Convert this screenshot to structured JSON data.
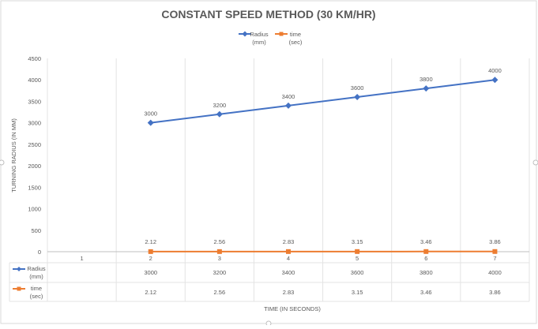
{
  "chart_data": {
    "type": "line",
    "title": "CONSTANT SPEED METHOD (30 KM/HR)",
    "xlabel": "TIME (IN SECONDS)",
    "ylabel": "TURNING RADIUS (IN MM)",
    "categories": [
      "1",
      "2",
      "3",
      "4",
      "5",
      "6",
      "7"
    ],
    "ylim": [
      0,
      4500
    ],
    "yticks": [
      "0",
      "500",
      "1000",
      "1500",
      "2000",
      "2500",
      "3000",
      "3500",
      "4000",
      "4500"
    ],
    "grid": "vertical",
    "legend_position": "top",
    "series": [
      {
        "name_line1": "Radius",
        "name_line2": "(mm)",
        "color": "#4472C4",
        "marker": "diamond",
        "values": [
          null,
          3000,
          3200,
          3400,
          3600,
          3800,
          4000
        ],
        "labels": [
          "",
          "3000",
          "3200",
          "3400",
          "3600",
          "3800",
          "4000"
        ]
      },
      {
        "name_line1": "time",
        "name_line2": "(sec)",
        "color": "#ED7D31",
        "marker": "square",
        "values": [
          null,
          2.12,
          2.56,
          2.83,
          3.15,
          3.46,
          3.86
        ],
        "labels": [
          "",
          "2.12",
          "2.56",
          "2.83",
          "3.15",
          "3.46",
          "3.86"
        ]
      }
    ]
  }
}
